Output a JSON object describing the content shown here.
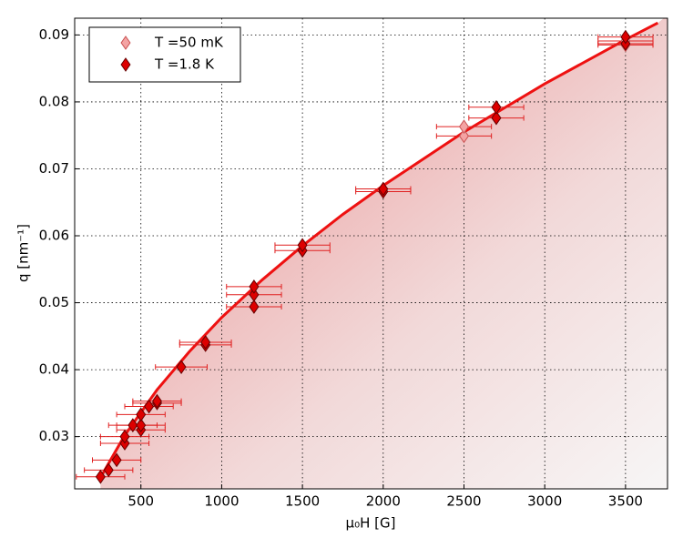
{
  "chart_data": {
    "type": "scatter",
    "x_label": "μ₀H [G]",
    "y_label": "q [nm⁻¹]",
    "xlim": [
      90,
      3760
    ],
    "ylim": [
      0.0222,
      0.0925
    ],
    "xticks": [
      500,
      1000,
      1500,
      2000,
      2500,
      3000,
      3500
    ],
    "yticks": [
      0.03,
      0.04,
      0.05,
      0.06,
      0.07,
      0.08,
      0.09
    ],
    "grid": true,
    "legend": "upper left",
    "series": [
      {
        "name": "T =50 mK",
        "color": "#f4a3a3",
        "edge": "#c85050",
        "x": [
          2500,
          2500,
          3500,
          3500
        ],
        "values": [
          0.0749,
          0.0763,
          0.0885,
          0.0891
        ],
        "xerr": [
          170,
          170,
          170,
          170
        ]
      },
      {
        "name": "T =1.8 K",
        "color": "#dd0000",
        "edge": "#660000",
        "x": [
          250,
          300,
          350,
          400,
          400,
          450,
          500,
          500,
          500,
          550,
          600,
          600,
          750,
          900,
          900,
          1200,
          1200,
          1200,
          1500,
          1500,
          2000,
          2000,
          2700,
          2700,
          3500,
          3500
        ],
        "values": [
          0.024,
          0.025,
          0.0265,
          0.029,
          0.03,
          0.0317,
          0.031,
          0.0317,
          0.0333,
          0.0345,
          0.035,
          0.0353,
          0.0404,
          0.0437,
          0.0441,
          0.0494,
          0.0512,
          0.0524,
          0.0578,
          0.0586,
          0.0666,
          0.067,
          0.0776,
          0.0792,
          0.0887,
          0.0897
        ],
        "xerr": [
          150,
          150,
          150,
          150,
          150,
          150,
          150,
          150,
          150,
          150,
          150,
          150,
          160,
          160,
          160,
          170,
          170,
          170,
          170,
          170,
          170,
          170,
          170,
          170,
          170,
          170
        ]
      }
    ],
    "fit": {
      "color": "#ee1111",
      "x": [
        250,
        400,
        600,
        800,
        1000,
        1250,
        1500,
        1750,
        2000,
        2500,
        3000,
        3500,
        3700
      ],
      "values": [
        0.0239,
        0.0302,
        0.037,
        0.0427,
        0.0478,
        0.0534,
        0.0585,
        0.0632,
        0.0675,
        0.0755,
        0.0827,
        0.0893,
        0.0918
      ]
    }
  }
}
